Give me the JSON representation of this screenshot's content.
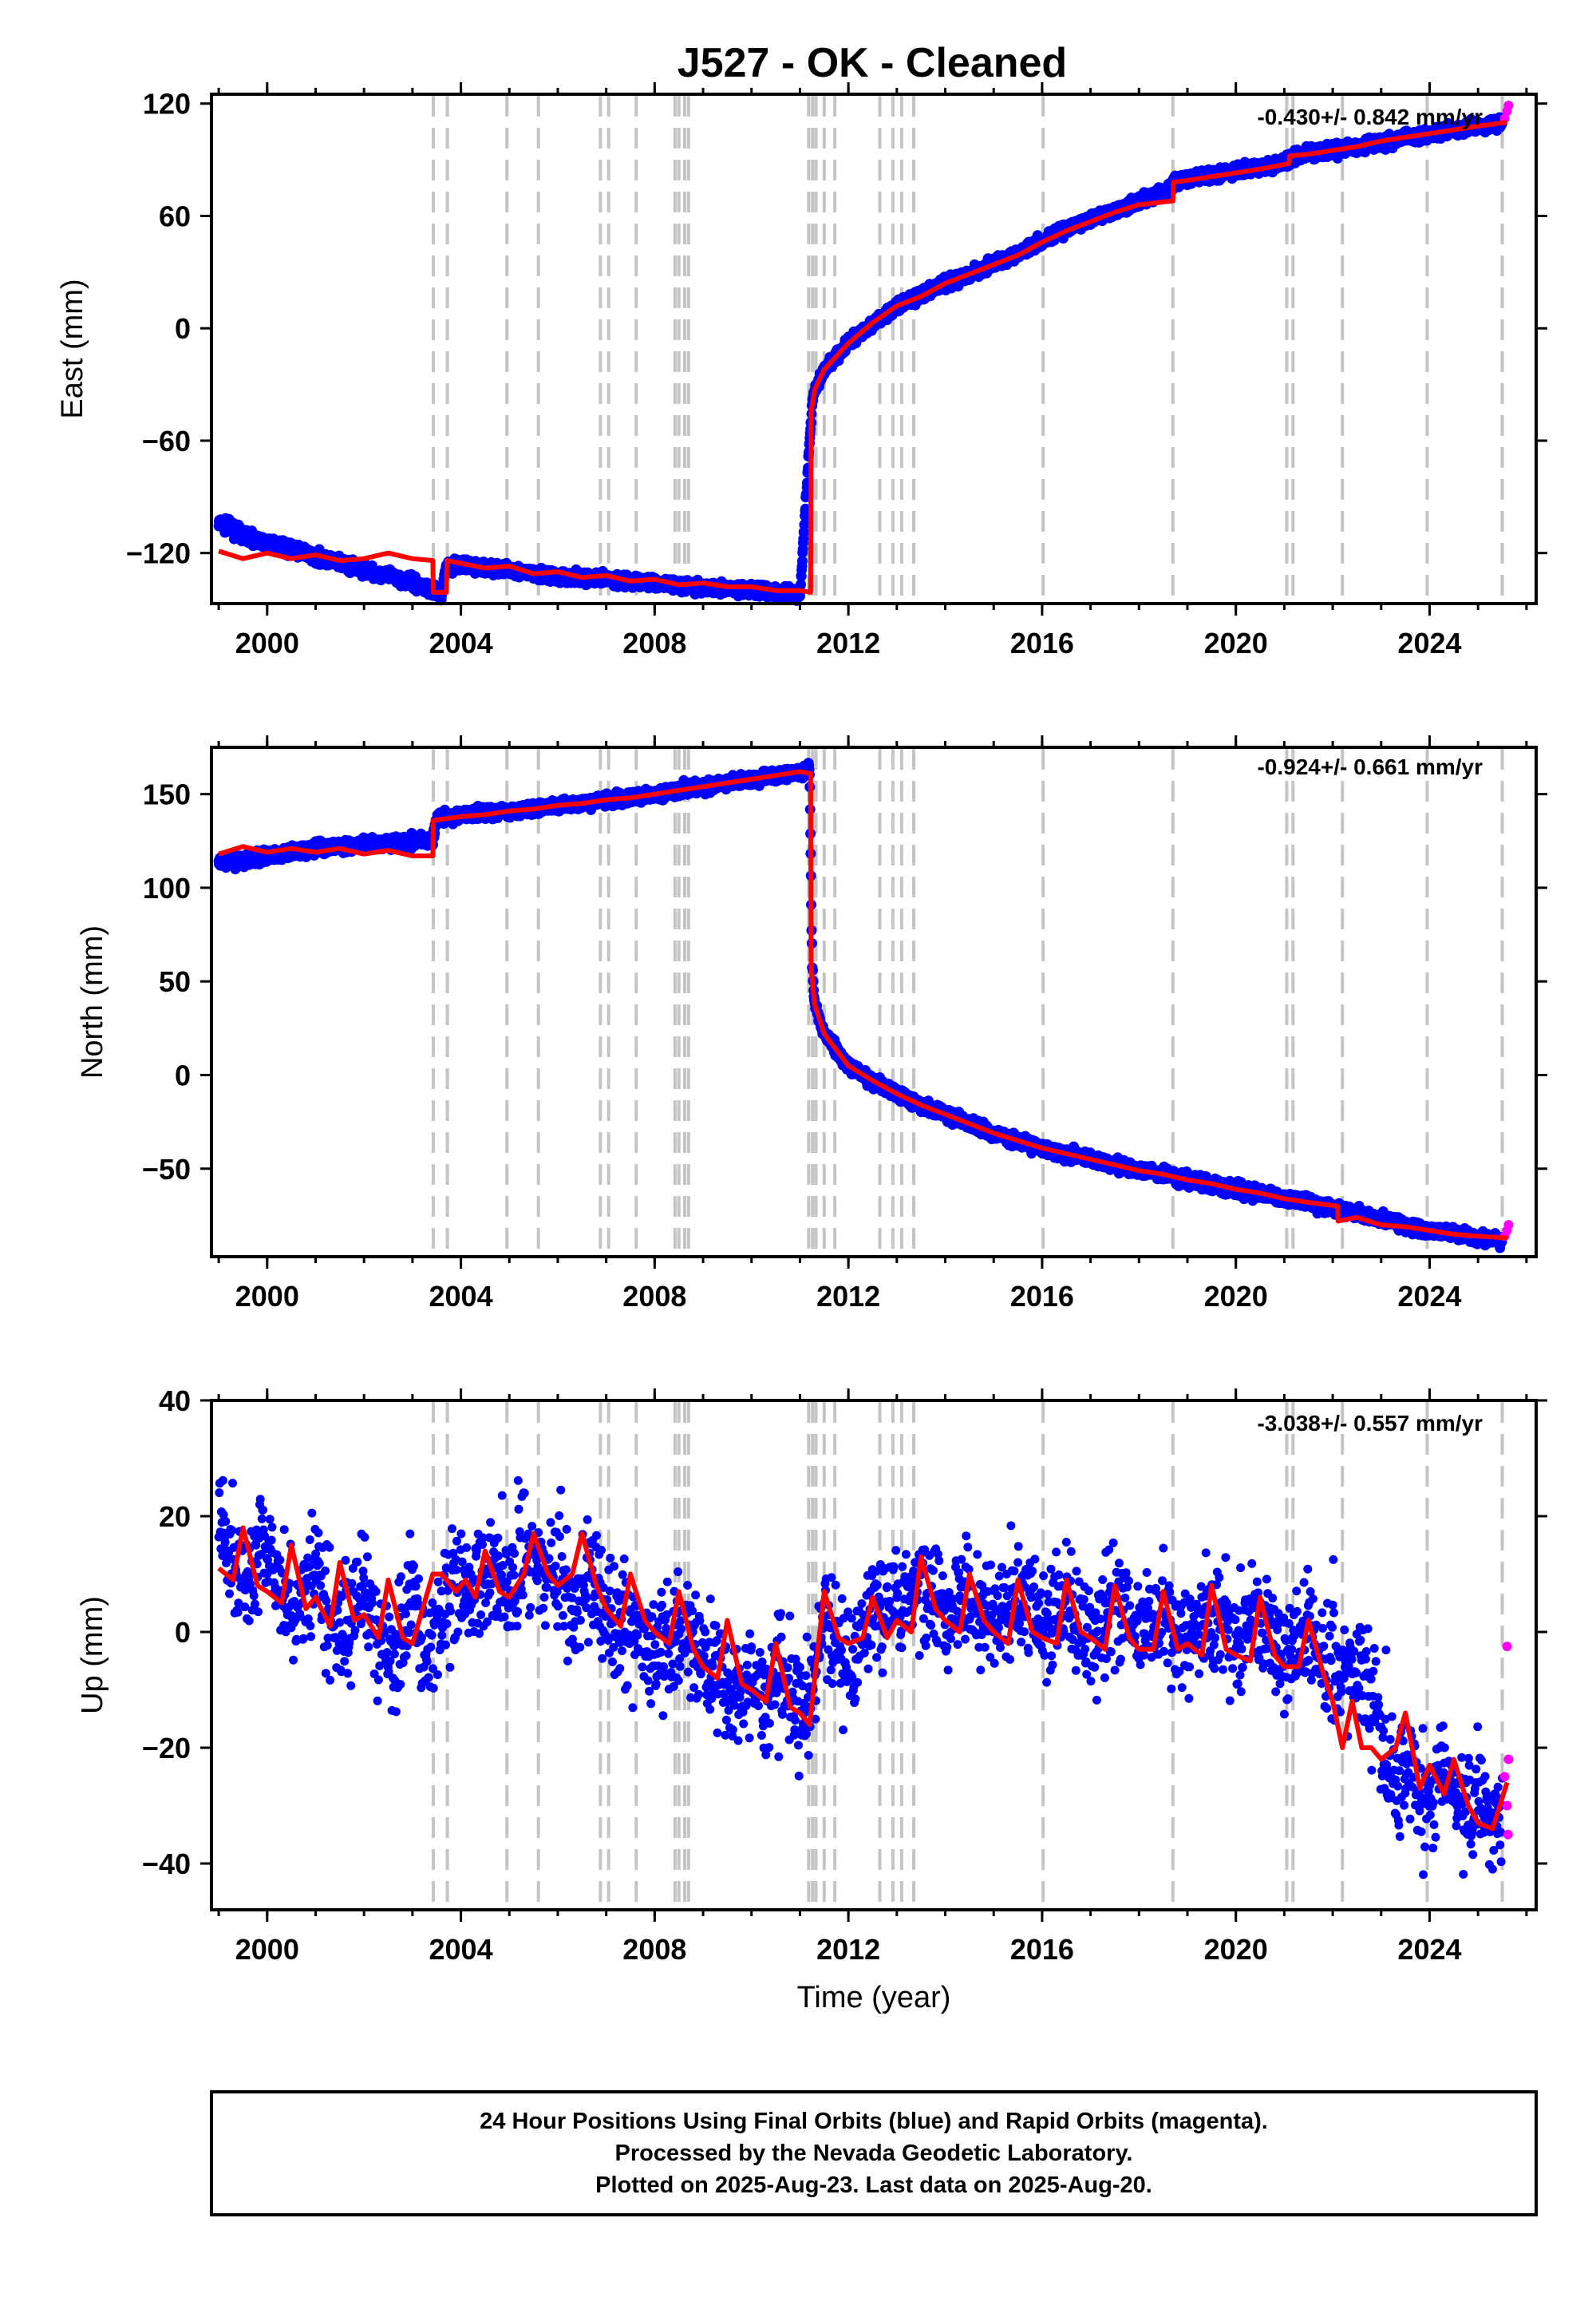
{
  "chart_data": [
    {
      "type": "scatter",
      "title": "J527  - OK - Cleaned",
      "xlabel": "",
      "ylabel": "East (mm)",
      "xlim": [
        1998.85,
        2026.2
      ],
      "ylim": [
        -147,
        125
      ],
      "xticks": [
        "2000",
        "2004",
        "2008",
        "2012",
        "2016",
        "2020",
        "2024"
      ],
      "yticks": [
        "−120",
        "−60",
        "0",
        "60",
        "120"
      ],
      "rate": "-0.430+/- 0.842 mm/yr",
      "grid": false,
      "series": [
        {
          "role": "final-orbits",
          "color": "#0000ff",
          "x": [
            1999.0,
            1999.5,
            2000.0,
            2000.5,
            2001.0,
            2001.5,
            2002.0,
            2002.5,
            2003.0,
            2003.42,
            2003.6,
            2003.7,
            2004.0,
            2004.5,
            2005.0,
            2005.5,
            2006.0,
            2006.5,
            2007.0,
            2007.5,
            2008.0,
            2008.5,
            2009.0,
            2009.5,
            2010.0,
            2010.5,
            2011.0,
            2011.25,
            2011.3,
            2011.5,
            2012.0,
            2012.5,
            2013.0,
            2013.5,
            2014.0,
            2014.5,
            2015.0,
            2015.5,
            2016.0,
            2016.5,
            2017.0,
            2017.5,
            2018.0,
            2018.5,
            2018.75,
            2019.0,
            2019.5,
            2020.0,
            2020.5,
            2021.0,
            2021.2,
            2021.5,
            2022.0,
            2022.5,
            2023.0,
            2023.5,
            2024.0,
            2024.5,
            2025.0,
            2025.5
          ],
          "y": [
            -104,
            -110,
            -115,
            -118,
            -122,
            -125,
            -129,
            -132,
            -136,
            -140,
            -142,
            -127,
            -126,
            -128,
            -129,
            -131,
            -133,
            -133,
            -134,
            -135,
            -136,
            -137,
            -138,
            -139,
            -140,
            -141,
            -142,
            -40,
            -33,
            -22,
            -8,
            2,
            12,
            18,
            24,
            29,
            35,
            40,
            47,
            53,
            58,
            63,
            68,
            72,
            78,
            80,
            82,
            84,
            86,
            88,
            92,
            93,
            95,
            97,
            99,
            102,
            104,
            106,
            108,
            110
          ]
        },
        {
          "role": "rapid-orbits",
          "color": "#ff00ff",
          "x": [
            2025.55,
            2025.6,
            2025.63
          ],
          "y": [
            112,
            116,
            119
          ]
        },
        {
          "role": "model",
          "color": "#ff0000",
          "x": [
            1999.0,
            1999.5,
            2000.0,
            2000.5,
            2001.0,
            2001.5,
            2002.0,
            2002.5,
            2003.0,
            2003.42,
            2003.43,
            2003.7,
            2003.71,
            2004.5,
            2005.0,
            2005.5,
            2006.0,
            2006.5,
            2007.0,
            2007.5,
            2008.0,
            2008.5,
            2009.0,
            2009.5,
            2010.0,
            2010.5,
            2011.0,
            2011.22,
            2011.23,
            2011.3,
            2011.5,
            2012.0,
            2012.5,
            2013.0,
            2013.5,
            2014.0,
            2014.5,
            2015.0,
            2015.5,
            2016.0,
            2016.5,
            2017.0,
            2017.5,
            2018.0,
            2018.7,
            2018.71,
            2019.0,
            2019.5,
            2020.0,
            2020.5,
            2021.1,
            2021.11,
            2021.5,
            2022.0,
            2022.5,
            2023.0,
            2023.5,
            2024.0,
            2024.5,
            2025.0,
            2025.6
          ],
          "y": [
            -119,
            -123,
            -120,
            -123,
            -121,
            -124,
            -123,
            -120,
            -123,
            -124,
            -141,
            -141,
            -124,
            -128,
            -127,
            -131,
            -130,
            -133,
            -132,
            -135,
            -134,
            -137,
            -136,
            -138,
            -138,
            -140,
            -140,
            -141,
            -45,
            -33,
            -22,
            -8,
            3,
            12,
            17,
            24,
            29,
            34,
            39,
            46,
            52,
            57,
            62,
            66,
            68,
            78,
            79,
            81,
            83,
            85,
            88,
            92,
            93,
            95,
            97,
            100,
            102,
            104,
            106,
            108,
            110
          ]
        }
      ]
    },
    {
      "type": "scatter",
      "title": "",
      "xlabel": "",
      "ylabel": "North (mm)",
      "xlim": [
        1998.85,
        2026.2
      ],
      "ylim": [
        -97,
        175
      ],
      "xticks": [
        "2000",
        "2004",
        "2008",
        "2012",
        "2016",
        "2020",
        "2024"
      ],
      "yticks": [
        "−50",
        "0",
        "50",
        "100",
        "150"
      ],
      "rate": "-0.924+/- 0.661 mm/yr",
      "grid": false,
      "series": [
        {
          "role": "final-orbits",
          "color": "#0000ff",
          "x": [
            1999.0,
            1999.5,
            2000.0,
            2000.5,
            2001.0,
            2001.5,
            2002.0,
            2002.5,
            2003.0,
            2003.42,
            2003.5,
            2004.0,
            2004.5,
            2005.0,
            2005.5,
            2006.0,
            2006.5,
            2007.0,
            2007.5,
            2008.0,
            2008.5,
            2009.0,
            2009.5,
            2010.0,
            2010.5,
            2011.0,
            2011.2,
            2011.25,
            2011.3,
            2011.5,
            2012.0,
            2012.5,
            2013.0,
            2013.5,
            2014.0,
            2014.5,
            2015.0,
            2015.5,
            2016.0,
            2016.5,
            2017.0,
            2017.5,
            2018.0,
            2018.5,
            2019.0,
            2019.5,
            2020.0,
            2020.5,
            2021.0,
            2021.5,
            2022.0,
            2022.5,
            2023.0,
            2023.5,
            2024.0,
            2024.5,
            2025.0,
            2025.5
          ],
          "y": [
            114,
            114,
            117,
            119,
            121,
            122,
            123,
            124,
            125,
            126,
            137,
            139,
            140,
            141,
            142,
            144,
            145,
            147,
            148,
            150,
            152,
            154,
            156,
            158,
            160,
            162,
            163,
            60,
            38,
            22,
            5,
            -3,
            -10,
            -16,
            -21,
            -26,
            -31,
            -35,
            -39,
            -42,
            -45,
            -48,
            -51,
            -53,
            -56,
            -58,
            -61,
            -63,
            -66,
            -68,
            -71,
            -74,
            -77,
            -80,
            -83,
            -85,
            -87,
            -88
          ]
        },
        {
          "role": "rapid-orbits",
          "color": "#ff00ff",
          "x": [
            2025.55,
            2025.6,
            2025.63
          ],
          "y": [
            -86,
            -83,
            -80
          ]
        },
        {
          "role": "model",
          "color": "#ff0000",
          "x": [
            1999.0,
            1999.5,
            2000.0,
            2000.5,
            2001.0,
            2001.5,
            2002.0,
            2002.5,
            2003.0,
            2003.42,
            2003.43,
            2004.0,
            2004.5,
            2005.0,
            2005.5,
            2006.0,
            2006.5,
            2007.0,
            2007.5,
            2008.0,
            2008.5,
            2009.0,
            2009.5,
            2010.0,
            2010.5,
            2011.0,
            2011.22,
            2011.23,
            2011.3,
            2011.5,
            2012.0,
            2012.5,
            2013.0,
            2013.5,
            2014.0,
            2014.5,
            2015.0,
            2015.5,
            2016.0,
            2016.5,
            2017.0,
            2017.5,
            2018.0,
            2018.5,
            2019.0,
            2019.5,
            2020.0,
            2020.5,
            2021.0,
            2021.5,
            2022.1,
            2022.11,
            2022.5,
            2023.0,
            2023.5,
            2024.0,
            2024.5,
            2025.0,
            2025.6
          ],
          "y": [
            118,
            122,
            119,
            121,
            119,
            121,
            118,
            120,
            117,
            117,
            136,
            138,
            139,
            141,
            142,
            144,
            145,
            147,
            148,
            150,
            152,
            154,
            156,
            158,
            160,
            162,
            161,
            58,
            38,
            22,
            5,
            -3,
            -10,
            -16,
            -21,
            -26,
            -31,
            -35,
            -39,
            -42,
            -45,
            -48,
            -51,
            -53,
            -56,
            -58,
            -61,
            -63,
            -66,
            -68,
            -70,
            -78,
            -76,
            -80,
            -81,
            -83,
            -85,
            -86,
            -87
          ]
        }
      ]
    },
    {
      "type": "scatter",
      "title": "",
      "xlabel": "Time (year)",
      "ylabel": "Up (mm)",
      "xlim": [
        1998.85,
        2026.2
      ],
      "ylim": [
        -48,
        40
      ],
      "xticks": [
        "2000",
        "2004",
        "2008",
        "2012",
        "2016",
        "2020",
        "2024"
      ],
      "yticks": [
        "−40",
        "−20",
        "0",
        "20",
        "40"
      ],
      "rate": "-3.038+/- 0.557 mm/yr",
      "grid": false,
      "series": [
        {
          "role": "final-orbits",
          "color": "#0000ff",
          "x": [
            1999.0,
            1999.3,
            1999.6,
            2000.0,
            2000.3,
            2000.6,
            2001.0,
            2001.3,
            2001.6,
            2002.0,
            2002.3,
            2002.6,
            2003.0,
            2003.3,
            2003.6,
            2004.0,
            2004.3,
            2004.6,
            2005.0,
            2005.3,
            2005.6,
            2006.0,
            2006.3,
            2006.6,
            2007.0,
            2007.3,
            2007.6,
            2008.0,
            2008.3,
            2008.6,
            2009.0,
            2009.3,
            2009.6,
            2010.0,
            2010.3,
            2010.6,
            2011.0,
            2011.2,
            2011.5,
            2012.0,
            2012.5,
            2013.0,
            2013.5,
            2014.0,
            2014.5,
            2015.0,
            2015.5,
            2016.0,
            2016.5,
            2017.0,
            2017.5,
            2018.0,
            2018.5,
            2019.0,
            2019.5,
            2020.0,
            2020.5,
            2021.0,
            2021.5,
            2022.0,
            2022.5,
            2022.9,
            2023.0,
            2023.3,
            2023.6,
            2024.0,
            2024.3,
            2024.6,
            2025.0,
            2025.3,
            2025.5
          ],
          "y": [
            22,
            14,
            8,
            15,
            6,
            2,
            12,
            3,
            0,
            8,
            -2,
            -4,
            6,
            -4,
            4,
            8,
            5,
            12,
            6,
            14,
            9,
            13,
            3,
            10,
            4,
            0,
            2,
            -3,
            -2,
            2,
            -8,
            -5,
            -12,
            -7,
            -10,
            -6,
            -12,
            -14,
            4,
            -6,
            3,
            4,
            10,
            3,
            8,
            2,
            7,
            1,
            6,
            0,
            5,
            -1,
            3,
            -2,
            4,
            -3,
            2,
            -4,
            0,
            -5,
            -8,
            -12,
            -24,
            -26,
            -22,
            -30,
            -24,
            -32,
            -28,
            -34,
            -26
          ]
        },
        {
          "role": "rapid-orbits",
          "color": "#ff00ff",
          "x": [
            2025.55,
            2025.6,
            2025.63,
            2025.6,
            2025.62
          ],
          "y": [
            -25,
            -30,
            -22,
            -2.5,
            -35
          ]
        },
        {
          "role": "model",
          "color": "#ff0000",
          "x": [
            1999.0,
            1999.3,
            1999.5,
            1999.8,
            2000.0,
            2000.3,
            2000.5,
            2000.8,
            2001.0,
            2001.3,
            2001.5,
            2001.8,
            2002.0,
            2002.3,
            2002.5,
            2002.8,
            2003.0,
            2003.42,
            2003.6,
            2003.9,
            2004.1,
            2004.3,
            2004.5,
            2004.8,
            2005.0,
            2005.3,
            2005.5,
            2005.8,
            2006.0,
            2006.3,
            2006.5,
            2006.8,
            2007.0,
            2007.3,
            2007.5,
            2007.8,
            2008.0,
            2008.3,
            2008.5,
            2008.8,
            2009.0,
            2009.3,
            2009.5,
            2009.8,
            2010.0,
            2010.3,
            2010.5,
            2010.8,
            2011.0,
            2011.2,
            2011.5,
            2011.8,
            2012.0,
            2012.3,
            2012.5,
            2012.8,
            2013.0,
            2013.3,
            2013.5,
            2013.8,
            2014.0,
            2014.3,
            2014.5,
            2014.8,
            2015.0,
            2015.3,
            2015.5,
            2015.8,
            2016.0,
            2016.3,
            2016.5,
            2016.8,
            2017.0,
            2017.3,
            2017.5,
            2017.8,
            2018.0,
            2018.3,
            2018.5,
            2018.8,
            2019.0,
            2019.3,
            2019.5,
            2019.8,
            2020.0,
            2020.3,
            2020.5,
            2020.8,
            2021.0,
            2021.3,
            2021.5,
            2021.8,
            2022.0,
            2022.2,
            2022.4,
            2022.6,
            2022.8,
            2023.0,
            2023.3,
            2023.5,
            2023.8,
            2024.0,
            2024.3,
            2024.5,
            2024.8,
            2025.0,
            2025.3,
            2025.6
          ],
          "y": [
            11,
            9,
            18,
            8,
            7,
            5,
            15,
            4,
            6,
            1,
            12,
            2,
            3,
            -1,
            9,
            -1,
            -2,
            10,
            10,
            7,
            9,
            6,
            14,
            7,
            6,
            10,
            17,
            10,
            8,
            10,
            17,
            8,
            4,
            1,
            10,
            2,
            0,
            -2,
            7,
            -3,
            -6,
            -8,
            2,
            -9,
            -10,
            -12,
            -2,
            -13,
            -14,
            -16,
            7,
            -1,
            -2,
            -1,
            6,
            -1,
            2,
            0,
            13,
            4,
            2,
            0,
            10,
            2,
            0,
            -2,
            9,
            0,
            -1,
            -2,
            9,
            0,
            -1,
            -3,
            8,
            -1,
            -3,
            -3,
            7,
            -3,
            -2,
            -4,
            8,
            -3,
            -4,
            -5,
            6,
            -4,
            -6,
            -6,
            2,
            -7,
            -12,
            -20,
            -12,
            -20,
            -20,
            -22,
            -20,
            -14,
            -27,
            -23,
            -28,
            -22,
            -30,
            -33,
            -34,
            -26
          ]
        }
      ]
    }
  ],
  "event_years": [
    2003.43,
    2003.72,
    2004.95,
    2005.6,
    2006.88,
    2007.05,
    2007.62,
    2008.42,
    2008.5,
    2008.62,
    2008.7,
    2011.18,
    2011.26,
    2011.33,
    2011.5,
    2011.72,
    2012.65,
    2012.92,
    2013.1,
    2013.35,
    2016.02,
    2018.7,
    2021.05,
    2021.18,
    2022.2,
    2023.95,
    2025.5
  ],
  "footer": {
    "line1": "24 Hour Positions Using Final Orbits (blue) and Rapid Orbits (magenta).",
    "line2": "Processed by the Nevada Geodetic Laboratory.",
    "line3": "Plotted on 2025-Aug-23. Last data on 2025-Aug-20."
  }
}
